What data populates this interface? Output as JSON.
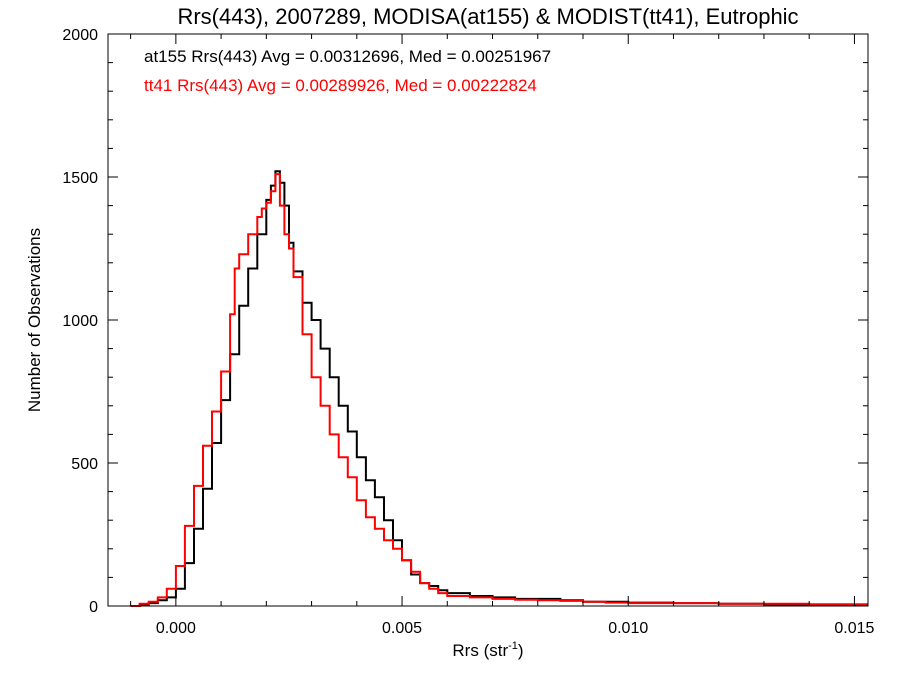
{
  "chart_data": {
    "type": "line",
    "title": "Rrs(443), 2007289, MODISA(at155) & MODIST(tt41), Eutrophic",
    "xlabel": "Rrs (str",
    "xlabel_sup": "-1",
    "xlabel_end": ")",
    "ylabel": "Number of Observations",
    "xlim": [
      -0.0015,
      0.0153
    ],
    "ylim": [
      0,
      2000
    ],
    "xticks": [
      0.0,
      0.005,
      0.01,
      0.015
    ],
    "xtick_labels": [
      "0.000",
      "0.005",
      "0.010",
      "0.015"
    ],
    "yticks": [
      0,
      500,
      1000,
      1500,
      2000
    ],
    "ytick_labels": [
      "0",
      "500",
      "1000",
      "1500",
      "2000"
    ],
    "grid": false,
    "line_style": "step",
    "annotations": [
      {
        "text": "at155 Rrs(443) Avg = 0.00312696, Med = 0.00251967",
        "color": "#000000"
      },
      {
        "text": "tt41 Rrs(443) Avg = 0.00289926, Med = 0.00222824",
        "color": "#ff0000"
      }
    ],
    "series": [
      {
        "color": "#000000",
        "x": [
          -0.001,
          -0.0008,
          -0.0006,
          -0.0004,
          -0.0002,
          0.0,
          0.0002,
          0.0004,
          0.0006,
          0.0008,
          0.001,
          0.0012,
          0.0014,
          0.0016,
          0.0018,
          0.002,
          0.0021,
          0.0022,
          0.0023,
          0.0024,
          0.0025,
          0.0026,
          0.0028,
          0.003,
          0.0032,
          0.0034,
          0.0036,
          0.0038,
          0.004,
          0.0042,
          0.0044,
          0.0046,
          0.0048,
          0.005,
          0.0052,
          0.0054,
          0.0056,
          0.0058,
          0.006,
          0.0065,
          0.007,
          0.0075,
          0.008,
          0.0085,
          0.009,
          0.0095,
          0.01,
          0.011,
          0.012,
          0.013,
          0.014,
          0.015
        ],
        "y": [
          0,
          5,
          10,
          20,
          30,
          60,
          150,
          270,
          410,
          570,
          720,
          880,
          1050,
          1180,
          1300,
          1420,
          1470,
          1520,
          1480,
          1400,
          1270,
          1170,
          1060,
          1000,
          900,
          800,
          700,
          610,
          520,
          440,
          380,
          300,
          230,
          160,
          110,
          80,
          70,
          55,
          45,
          35,
          30,
          25,
          25,
          20,
          15,
          15,
          12,
          10,
          8,
          5,
          5,
          5
        ]
      },
      {
        "color": "#ff0000",
        "x": [
          -0.001,
          -0.0008,
          -0.0006,
          -0.0004,
          -0.0002,
          0.0,
          0.0002,
          0.0004,
          0.0006,
          0.0008,
          0.001,
          0.0012,
          0.0013,
          0.0014,
          0.0016,
          0.0018,
          0.0019,
          0.002,
          0.0021,
          0.0022,
          0.0023,
          0.0024,
          0.0025,
          0.0026,
          0.0028,
          0.003,
          0.0032,
          0.0034,
          0.0036,
          0.0038,
          0.004,
          0.0042,
          0.0044,
          0.0046,
          0.0048,
          0.005,
          0.0052,
          0.0054,
          0.0056,
          0.0058,
          0.006,
          0.0065,
          0.007,
          0.0075,
          0.008,
          0.0085,
          0.009,
          0.0095,
          0.01,
          0.011,
          0.012,
          0.013,
          0.014,
          0.015
        ],
        "y": [
          0,
          8,
          15,
          30,
          60,
          140,
          280,
          420,
          560,
          680,
          820,
          1020,
          1180,
          1230,
          1300,
          1360,
          1390,
          1410,
          1450,
          1510,
          1400,
          1300,
          1250,
          1150,
          950,
          800,
          700,
          600,
          520,
          450,
          370,
          310,
          270,
          230,
          200,
          160,
          120,
          80,
          60,
          45,
          35,
          30,
          25,
          22,
          20,
          18,
          15,
          12,
          10,
          10,
          8,
          8,
          6,
          6
        ]
      }
    ]
  }
}
